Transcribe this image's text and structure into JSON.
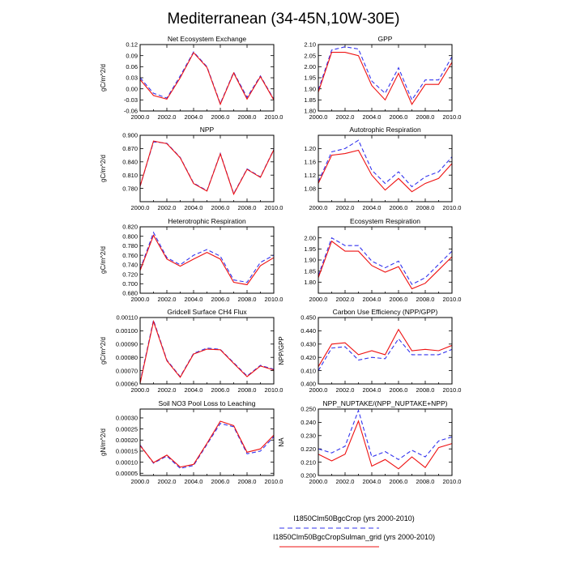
{
  "figure": {
    "title": "Mediterranean (34-45N,10W-30E)"
  },
  "legend": [
    {
      "label": "I1850Clm50BgcCrop (yrs 2000-2010)",
      "color": "#3333ee",
      "dash": true
    },
    {
      "label": "I1850Clm50BgcCropSulman_grid (yrs 2000-2010)",
      "color": "#ee1111",
      "dash": false
    }
  ],
  "chart_data": [
    {
      "type": "line",
      "title": "Net Ecosystem Exchange",
      "ylabel": "gC/m^2/d",
      "x": [
        2000,
        2001,
        2002,
        2003,
        2004,
        2005,
        2006,
        2007,
        2008,
        2009,
        2010
      ],
      "xlim": [
        2000,
        2010
      ],
      "xticks": [
        2000,
        2002,
        2004,
        2006,
        2008,
        2010
      ],
      "xticklabels": [
        "2000.0",
        "2002.0",
        "2004.0",
        "2006.0",
        "2008.0",
        "2010.0"
      ],
      "ylim": [
        -0.06,
        0.12
      ],
      "yticks": [
        -0.06,
        -0.03,
        0.0,
        0.03,
        0.06,
        0.09,
        0.12
      ],
      "yticklabels": [
        "-0.06",
        "-0.03",
        "0.00",
        "0.03",
        "0.06",
        "0.09",
        "0.12"
      ],
      "series": [
        {
          "values": [
            0.03,
            -0.012,
            -0.025,
            0.035,
            0.1,
            0.06,
            -0.04,
            0.045,
            -0.023,
            0.035,
            -0.028
          ]
        },
        {
          "values": [
            0.025,
            -0.018,
            -0.028,
            0.03,
            0.098,
            0.058,
            -0.042,
            0.043,
            -0.028,
            0.033,
            -0.03
          ]
        }
      ]
    },
    {
      "type": "line",
      "title": "GPP",
      "ylabel": "",
      "x": [
        2000,
        2001,
        2002,
        2003,
        2004,
        2005,
        2006,
        2007,
        2008,
        2009,
        2010
      ],
      "xlim": [
        2000,
        2010
      ],
      "xticks": [
        2000,
        2002,
        2004,
        2006,
        2008,
        2010
      ],
      "xticklabels": [
        "2000.0",
        "2002.0",
        "2004.0",
        "2006.0",
        "2008.0",
        "2010.0"
      ],
      "ylim": [
        1.8,
        2.1
      ],
      "yticks": [
        1.8,
        1.85,
        1.9,
        1.95,
        2.0,
        2.05,
        2.1
      ],
      "yticklabels": [
        "1.80",
        "1.85",
        "1.90",
        "1.95",
        "2.00",
        "2.05",
        "2.10"
      ],
      "series": [
        {
          "values": [
            1.895,
            2.075,
            2.09,
            2.08,
            1.935,
            1.88,
            1.995,
            1.85,
            1.94,
            1.94,
            2.045
          ]
        },
        {
          "values": [
            1.885,
            2.065,
            2.065,
            2.05,
            1.915,
            1.85,
            1.97,
            1.83,
            1.92,
            1.92,
            2.02
          ]
        }
      ]
    },
    {
      "type": "line",
      "title": "NPP",
      "ylabel": "gC/m^2/d",
      "x": [
        2000,
        2001,
        2002,
        2003,
        2004,
        2005,
        2006,
        2007,
        2008,
        2009,
        2010
      ],
      "xlim": [
        2000,
        2010
      ],
      "xticks": [
        2000,
        2002,
        2004,
        2006,
        2008,
        2010
      ],
      "xticklabels": [
        "2000.0",
        "2002.0",
        "2004.0",
        "2006.0",
        "2008.0",
        "2010.0"
      ],
      "ylim": [
        0.75,
        0.9
      ],
      "yticks": [
        0.78,
        0.81,
        0.84,
        0.87,
        0.9
      ],
      "yticklabels": [
        "0.780",
        "0.810",
        "0.840",
        "0.870",
        "0.900"
      ],
      "series": [
        {
          "values": [
            0.785,
            0.885,
            0.882,
            0.85,
            0.792,
            0.775,
            0.859,
            0.768,
            0.824,
            0.806,
            0.868
          ]
        },
        {
          "values": [
            0.785,
            0.887,
            0.881,
            0.849,
            0.791,
            0.774,
            0.858,
            0.767,
            0.823,
            0.805,
            0.867
          ]
        }
      ]
    },
    {
      "type": "line",
      "title": "Autotrophic Respiration",
      "ylabel": "",
      "x": [
        2000,
        2001,
        2002,
        2003,
        2004,
        2005,
        2006,
        2007,
        2008,
        2009,
        2010
      ],
      "xlim": [
        2000,
        2010
      ],
      "xticks": [
        2000,
        2002,
        2004,
        2006,
        2008,
        2010
      ],
      "xticklabels": [
        "2000.0",
        "2002.0",
        "2004.0",
        "2006.0",
        "2008.0",
        "2010.0"
      ],
      "ylim": [
        1.04,
        1.24
      ],
      "yticks": [
        1.08,
        1.12,
        1.16,
        1.2
      ],
      "yticklabels": [
        "1.08",
        "1.12",
        "1.16",
        "1.20"
      ],
      "series": [
        {
          "values": [
            1.1,
            1.19,
            1.2,
            1.225,
            1.135,
            1.095,
            1.13,
            1.085,
            1.115,
            1.13,
            1.175
          ]
        },
        {
          "values": [
            1.095,
            1.18,
            1.185,
            1.195,
            1.12,
            1.075,
            1.11,
            1.07,
            1.095,
            1.11,
            1.155
          ]
        }
      ]
    },
    {
      "type": "line",
      "title": "Heterotrophic Respiration",
      "ylabel": "gC/m^2/d",
      "x": [
        2000,
        2001,
        2002,
        2003,
        2004,
        2005,
        2006,
        2007,
        2008,
        2009,
        2010
      ],
      "xlim": [
        2000,
        2010
      ],
      "xticks": [
        2000,
        2002,
        2004,
        2006,
        2008,
        2010
      ],
      "xticklabels": [
        "2000.0",
        "2002.0",
        "2004.0",
        "2006.0",
        "2008.0",
        "2010.0"
      ],
      "ylim": [
        0.68,
        0.82
      ],
      "yticks": [
        0.68,
        0.7,
        0.72,
        0.74,
        0.76,
        0.78,
        0.8,
        0.82
      ],
      "yticklabels": [
        "0.680",
        "0.700",
        "0.720",
        "0.740",
        "0.760",
        "0.780",
        "0.800",
        "0.820"
      ],
      "series": [
        {
          "values": [
            0.73,
            0.808,
            0.755,
            0.74,
            0.76,
            0.772,
            0.758,
            0.708,
            0.703,
            0.745,
            0.76
          ]
        },
        {
          "values": [
            0.728,
            0.802,
            0.752,
            0.737,
            0.752,
            0.766,
            0.752,
            0.703,
            0.698,
            0.738,
            0.755
          ]
        }
      ]
    },
    {
      "type": "line",
      "title": "Ecosystem Respiration",
      "ylabel": "",
      "x": [
        2000,
        2001,
        2002,
        2003,
        2004,
        2005,
        2006,
        2007,
        2008,
        2009,
        2010
      ],
      "xlim": [
        2000,
        2010
      ],
      "xticks": [
        2000,
        2002,
        2004,
        2006,
        2008,
        2010
      ],
      "xticklabels": [
        "2000.0",
        "2002.0",
        "2004.0",
        "2006.0",
        "2008.0",
        "2010.0"
      ],
      "ylim": [
        1.75,
        2.05
      ],
      "yticks": [
        1.8,
        1.85,
        1.9,
        1.95,
        2.0
      ],
      "yticklabels": [
        "1.80",
        "1.85",
        "1.90",
        "1.95",
        "2.00"
      ],
      "series": [
        {
          "values": [
            1.83,
            2.0,
            1.965,
            1.965,
            1.895,
            1.865,
            1.895,
            1.79,
            1.82,
            1.88,
            1.94
          ]
        },
        {
          "values": [
            1.82,
            1.985,
            1.94,
            1.94,
            1.875,
            1.845,
            1.87,
            1.77,
            1.795,
            1.855,
            1.915
          ]
        }
      ]
    },
    {
      "type": "line",
      "title": "Gridcell Surface CH4 Flux",
      "ylabel": "gC/m^2/d",
      "x": [
        2000,
        2001,
        2002,
        2003,
        2004,
        2005,
        2006,
        2007,
        2008,
        2009,
        2010
      ],
      "xlim": [
        2000,
        2010
      ],
      "xticks": [
        2000,
        2002,
        2004,
        2006,
        2008,
        2010
      ],
      "xticklabels": [
        "2000.0",
        "2002.0",
        "2004.0",
        "2006.0",
        "2008.0",
        "2010.0"
      ],
      "ylim": [
        0.0006,
        0.0011
      ],
      "yticks": [
        0.0006,
        0.0007,
        0.0008,
        0.0009,
        0.001,
        0.0011
      ],
      "yticklabels": [
        "0.00060",
        "0.00070",
        "0.00080",
        "0.00090",
        "0.00100",
        "0.00110"
      ],
      "series": [
        {
          "values": [
            0.000615,
            0.00108,
            0.00078,
            0.000655,
            0.00083,
            0.00087,
            0.00086,
            0.00076,
            0.00066,
            0.00074,
            0.00071
          ]
        },
        {
          "values": [
            0.000605,
            0.00107,
            0.000775,
            0.00065,
            0.000825,
            0.000862,
            0.000857,
            0.000755,
            0.000655,
            0.000735,
            0.000705
          ]
        }
      ]
    },
    {
      "type": "line",
      "title": "Carbon Use Efficiency (NPP/GPP)",
      "ylabel": "NPP/GPP",
      "x": [
        2000,
        2001,
        2002,
        2003,
        2004,
        2005,
        2006,
        2007,
        2008,
        2009,
        2010
      ],
      "xlim": [
        2000,
        2010
      ],
      "xticks": [
        2000,
        2002,
        2004,
        2006,
        2008,
        2010
      ],
      "xticklabels": [
        "2000.0",
        "2002.0",
        "2004.0",
        "2006.0",
        "2008.0",
        "2010.0"
      ],
      "ylim": [
        0.4,
        0.45
      ],
      "yticks": [
        0.4,
        0.41,
        0.42,
        0.43,
        0.44,
        0.45
      ],
      "yticklabels": [
        "0.400",
        "0.410",
        "0.420",
        "0.430",
        "0.440",
        "0.450"
      ],
      "series": [
        {
          "values": [
            0.41,
            0.427,
            0.428,
            0.418,
            0.42,
            0.419,
            0.434,
            0.422,
            0.422,
            0.422,
            0.426
          ]
        },
        {
          "values": [
            0.413,
            0.43,
            0.431,
            0.422,
            0.425,
            0.422,
            0.441,
            0.425,
            0.426,
            0.425,
            0.429
          ]
        }
      ]
    },
    {
      "type": "line",
      "title": "Soil NO3 Pool Loss to Leaching",
      "ylabel": "gN/m^2/d",
      "x": [
        2000,
        2001,
        2002,
        2003,
        2004,
        2005,
        2006,
        2007,
        2008,
        2009,
        2010
      ],
      "xlim": [
        2000,
        2010
      ],
      "xticks": [
        2000,
        2002,
        2004,
        2006,
        2008,
        2010
      ],
      "xticklabels": [
        "2000.0",
        "2002.0",
        "2004.0",
        "2006.0",
        "2008.0",
        "2010.0"
      ],
      "ylim": [
        4e-05,
        0.00034
      ],
      "yticks": [
        5e-05,
        0.0001,
        0.00015,
        0.0002,
        0.00025,
        0.0003
      ],
      "yticklabels": [
        "0.00005",
        "0.00010",
        "0.00015",
        "0.00020",
        "0.00025",
        "0.00030"
      ],
      "series": [
        {
          "values": [
            0.000178,
            9.5e-05,
            0.000128,
            7.2e-05,
            8.5e-05,
            0.00018,
            0.000275,
            0.00026,
            0.000138,
            0.00015,
            0.000215
          ]
        },
        {
          "values": [
            0.000175,
            9.8e-05,
            0.000132,
            7.8e-05,
            9e-05,
            0.000185,
            0.000285,
            0.000265,
            0.000145,
            0.00016,
            0.000222
          ]
        }
      ]
    },
    {
      "type": "line",
      "title": "NPP_NUPTAKE/(NPP_NUPTAKE+NPP)",
      "ylabel": "NA",
      "x": [
        2000,
        2001,
        2002,
        2003,
        2004,
        2005,
        2006,
        2007,
        2008,
        2009,
        2010
      ],
      "xlim": [
        2000,
        2010
      ],
      "xticks": [
        2000,
        2002,
        2004,
        2006,
        2008,
        2010
      ],
      "xticklabels": [
        "2000.0",
        "2002.0",
        "2004.0",
        "2006.0",
        "2008.0",
        "2010.0"
      ],
      "ylim": [
        0.2,
        0.25
      ],
      "yticks": [
        0.2,
        0.21,
        0.22,
        0.23,
        0.24,
        0.25
      ],
      "yticklabels": [
        "0.200",
        "0.210",
        "0.220",
        "0.230",
        "0.240",
        "0.250"
      ],
      "series": [
        {
          "values": [
            0.22,
            0.217,
            0.222,
            0.249,
            0.214,
            0.218,
            0.212,
            0.219,
            0.214,
            0.226,
            0.229
          ]
        },
        {
          "values": [
            0.216,
            0.211,
            0.216,
            0.241,
            0.207,
            0.212,
            0.205,
            0.214,
            0.206,
            0.221,
            0.224
          ]
        }
      ]
    }
  ]
}
